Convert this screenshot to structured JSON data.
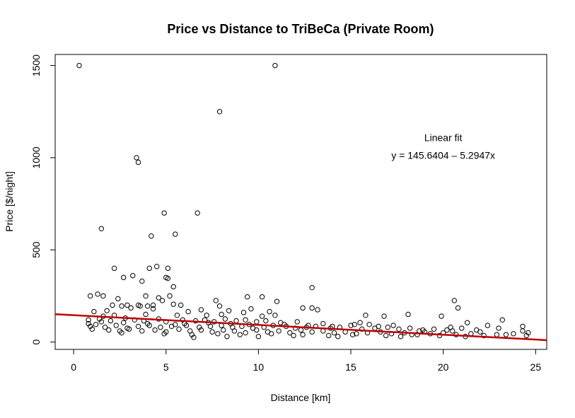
{
  "chart_data": {
    "type": "scatter",
    "title": "Price vs Distance to TriBeCa (Private Room)",
    "xlabel": "Distance [km]",
    "ylabel": "Price [$/night]",
    "xlim": [
      -1,
      25.6
    ],
    "ylim": [
      -40,
      1560
    ],
    "x_ticks": [
      0,
      5,
      10,
      15,
      20,
      25
    ],
    "y_ticks": [
      0,
      500,
      1000,
      1500
    ],
    "grid": false,
    "annotation": {
      "line1": "Linear fit",
      "line2": "y = 145.6404 – 5.2947x",
      "x": 20.0,
      "y_line1": 1090,
      "y_line2": 995
    },
    "fit": {
      "intercept": 145.6404,
      "slope": -5.2947,
      "x_start": -1,
      "x_end": 25.6,
      "color": "#c00000"
    },
    "points": [
      [
        0.3,
        1500
      ],
      [
        10.9,
        1500
      ],
      [
        7.9,
        1250
      ],
      [
        3.4,
        1000
      ],
      [
        3.5,
        975
      ],
      [
        4.9,
        700
      ],
      [
        6.7,
        700
      ],
      [
        1.5,
        615
      ],
      [
        4.2,
        575
      ],
      [
        5.5,
        585
      ],
      [
        2.2,
        400
      ],
      [
        4.5,
        410
      ],
      [
        4.1,
        400
      ],
      [
        5.1,
        400
      ],
      [
        2.7,
        350
      ],
      [
        3.2,
        360
      ],
      [
        5.0,
        350
      ],
      [
        5.1,
        345
      ],
      [
        3.7,
        330
      ],
      [
        12.9,
        295
      ],
      [
        5.4,
        300
      ],
      [
        0.9,
        250
      ],
      [
        1.3,
        260
      ],
      [
        1.6,
        250
      ],
      [
        2.4,
        235
      ],
      [
        3.9,
        250
      ],
      [
        4.6,
        240
      ],
      [
        4.8,
        225
      ],
      [
        5.2,
        250
      ],
      [
        9.4,
        245
      ],
      [
        10.2,
        245
      ],
      [
        7.7,
        225
      ],
      [
        11.0,
        220
      ],
      [
        20.6,
        225
      ],
      [
        2.1,
        200
      ],
      [
        2.6,
        195
      ],
      [
        2.9,
        200
      ],
      [
        3.5,
        200
      ],
      [
        3.6,
        195
      ],
      [
        4.0,
        195
      ],
      [
        4.3,
        200
      ],
      [
        5.4,
        205
      ],
      [
        5.8,
        200
      ],
      [
        7.9,
        195
      ],
      [
        9.6,
        180
      ],
      [
        12.4,
        185
      ],
      [
        12.9,
        185
      ],
      [
        13.2,
        175
      ],
      [
        20.8,
        185
      ],
      [
        1.1,
        165
      ],
      [
        1.8,
        170
      ],
      [
        3.1,
        185
      ],
      [
        4.3,
        180
      ],
      [
        6.2,
        165
      ],
      [
        6.9,
        175
      ],
      [
        8.4,
        170
      ],
      [
        9.2,
        160
      ],
      [
        10.6,
        165
      ],
      [
        1.6,
        140
      ],
      [
        2.2,
        145
      ],
      [
        3.9,
        150
      ],
      [
        5.6,
        145
      ],
      [
        7.2,
        145
      ],
      [
        8.0,
        150
      ],
      [
        10.2,
        140
      ],
      [
        10.9,
        145
      ],
      [
        15.8,
        145
      ],
      [
        16.8,
        140
      ],
      [
        18.1,
        150
      ],
      [
        19.9,
        140
      ],
      [
        0.8,
        120
      ],
      [
        1.4,
        125
      ],
      [
        2.0,
        115
      ],
      [
        2.8,
        130
      ],
      [
        3.3,
        120
      ],
      [
        3.8,
        115
      ],
      [
        4.6,
        125
      ],
      [
        5.0,
        110
      ],
      [
        5.9,
        120
      ],
      [
        6.6,
        115
      ],
      [
        7.1,
        120
      ],
      [
        7.6,
        110
      ],
      [
        8.2,
        125
      ],
      [
        8.8,
        115
      ],
      [
        9.3,
        120
      ],
      [
        9.9,
        110
      ],
      [
        10.4,
        115
      ],
      [
        11.2,
        105
      ],
      [
        12.1,
        110
      ],
      [
        13.5,
        100
      ],
      [
        15.5,
        105
      ],
      [
        16.0,
        95
      ],
      [
        17.3,
        90
      ],
      [
        21.3,
        105
      ],
      [
        23.2,
        120
      ],
      [
        0.9,
        85
      ],
      [
        1.2,
        95
      ],
      [
        1.7,
        80
      ],
      [
        2.3,
        90
      ],
      [
        2.9,
        75
      ],
      [
        3.5,
        85
      ],
      [
        4.1,
        90
      ],
      [
        4.7,
        80
      ],
      [
        5.3,
        85
      ],
      [
        6.1,
        90
      ],
      [
        6.8,
        80
      ],
      [
        7.4,
        85
      ],
      [
        8.0,
        90
      ],
      [
        8.6,
        80
      ],
      [
        9.1,
        85
      ],
      [
        9.7,
        75
      ],
      [
        10.3,
        80
      ],
      [
        10.8,
        90
      ],
      [
        11.5,
        85
      ],
      [
        12.0,
        75
      ],
      [
        12.6,
        80
      ],
      [
        13.1,
        85
      ],
      [
        13.9,
        75
      ],
      [
        14.4,
        80
      ],
      [
        15.0,
        90
      ],
      [
        15.6,
        70
      ],
      [
        16.3,
        75
      ],
      [
        17.0,
        80
      ],
      [
        17.6,
        70
      ],
      [
        18.2,
        75
      ],
      [
        18.9,
        65
      ],
      [
        19.5,
        70
      ],
      [
        20.4,
        80
      ],
      [
        21.0,
        75
      ],
      [
        21.8,
        65
      ],
      [
        22.4,
        90
      ],
      [
        23.0,
        75
      ],
      [
        24.3,
        85
      ],
      [
        1.0,
        70
      ],
      [
        1.9,
        65
      ],
      [
        2.5,
        60
      ],
      [
        3.0,
        70
      ],
      [
        3.7,
        60
      ],
      [
        4.4,
        65
      ],
      [
        5.0,
        55
      ],
      [
        5.7,
        70
      ],
      [
        6.3,
        60
      ],
      [
        6.9,
        65
      ],
      [
        7.5,
        55
      ],
      [
        8.1,
        65
      ],
      [
        8.7,
        60
      ],
      [
        9.3,
        50
      ],
      [
        9.9,
        65
      ],
      [
        10.5,
        55
      ],
      [
        11.1,
        60
      ],
      [
        11.7,
        50
      ],
      [
        12.3,
        65
      ],
      [
        12.9,
        55
      ],
      [
        13.5,
        60
      ],
      [
        14.1,
        50
      ],
      [
        14.7,
        55
      ],
      [
        15.3,
        45
      ],
      [
        15.9,
        50
      ],
      [
        16.6,
        55
      ],
      [
        17.2,
        45
      ],
      [
        17.9,
        50
      ],
      [
        18.6,
        40
      ],
      [
        19.3,
        45
      ],
      [
        20.0,
        50
      ],
      [
        20.7,
        40
      ],
      [
        21.5,
        45
      ],
      [
        22.2,
        35
      ],
      [
        22.9,
        40
      ],
      [
        23.8,
        45
      ],
      [
        24.6,
        50
      ],
      [
        2.6,
        50
      ],
      [
        4.9,
        45
      ],
      [
        6.4,
        40
      ],
      [
        7.8,
        45
      ],
      [
        9.0,
        40
      ],
      [
        10.7,
        45
      ],
      [
        12.4,
        40
      ],
      [
        13.8,
        35
      ],
      [
        15.1,
        40
      ],
      [
        16.9,
        35
      ],
      [
        18.3,
        40
      ],
      [
        19.8,
        35
      ],
      [
        21.2,
        30
      ],
      [
        23.4,
        40
      ],
      [
        24.5,
        35
      ],
      [
        6.5,
        25
      ],
      [
        8.3,
        30
      ],
      [
        10.0,
        30
      ],
      [
        11.9,
        35
      ],
      [
        14.3,
        30
      ],
      [
        17.7,
        30
      ],
      [
        20.5,
        60
      ],
      [
        0.8,
        100
      ],
      [
        1.5,
        110
      ],
      [
        2.7,
        105
      ],
      [
        4.0,
        100
      ],
      [
        5.5,
        95
      ],
      [
        6.0,
        100
      ],
      [
        7.3,
        105
      ],
      [
        8.5,
        100
      ],
      [
        9.5,
        95
      ],
      [
        11.4,
        95
      ],
      [
        12.7,
        90
      ],
      [
        14.0,
        85
      ],
      [
        15.2,
        95
      ],
      [
        16.5,
        85
      ],
      [
        18.7,
        60
      ],
      [
        19.0,
        55
      ],
      [
        20.2,
        65
      ],
      [
        22.0,
        55
      ],
      [
        24.3,
        60
      ]
    ]
  }
}
